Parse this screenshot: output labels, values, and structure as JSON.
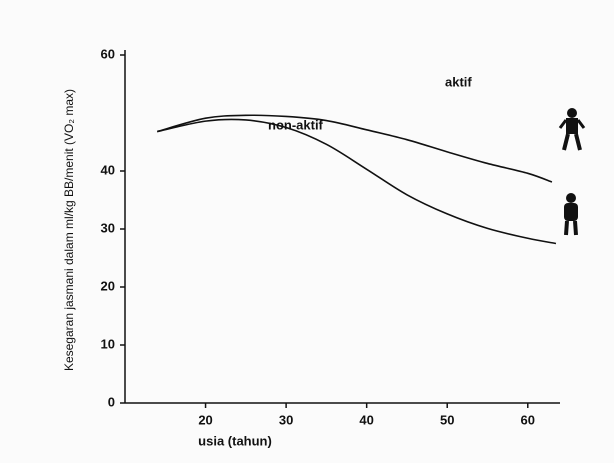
{
  "chart_data": {
    "type": "line",
    "y_label": "Kesegaran jasmani dalam ml/kg BB/menit (VO₂ max)",
    "x_label": "usia (tahun)",
    "series": [
      {
        "name": "aktif",
        "color": "#111111",
        "x": [
          14,
          20,
          25,
          30,
          35,
          40,
          45,
          50,
          55,
          60,
          63
        ],
        "values": [
          46.8,
          49.1,
          49.6,
          49.4,
          48.7,
          47.1,
          45.4,
          43.3,
          41.3,
          39.6,
          38.1
        ]
      },
      {
        "name": "non-aktif",
        "color": "#111111",
        "x": [
          14,
          20,
          25,
          30,
          35,
          40,
          45,
          50,
          55,
          60,
          63.5
        ],
        "values": [
          46.8,
          48.6,
          48.8,
          47.5,
          44.6,
          40.3,
          35.9,
          32.6,
          30.1,
          28.4,
          27.5
        ]
      }
    ],
    "xlim": [
      10,
      64
    ],
    "xticks": [
      20,
      30,
      40,
      50,
      60
    ],
    "ylim": [
      0,
      60
    ],
    "yticks": [
      0,
      10,
      20,
      30,
      40,
      60
    ]
  }
}
